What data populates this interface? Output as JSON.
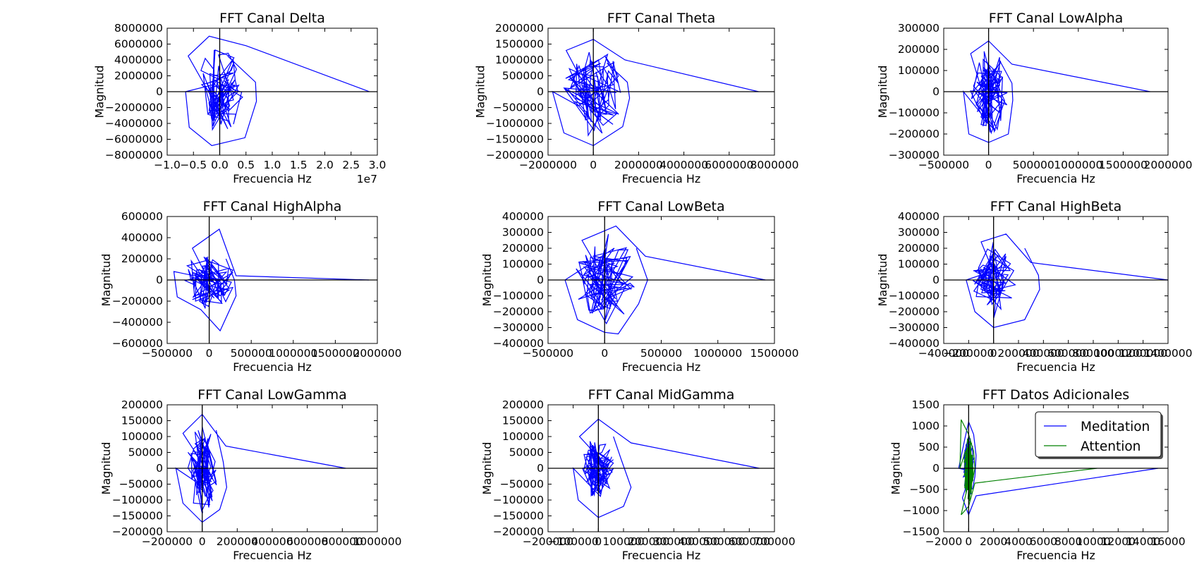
{
  "chart_data": [
    {
      "type": "line",
      "title": "FFT Canal Delta",
      "xlabel": "Frecuencia Hz",
      "ylabel": "Magnitud",
      "xlim": [
        -10000000,
        30000000
      ],
      "ylim": [
        -8000000,
        8000000
      ],
      "xticks": [
        -10000000,
        -5000000,
        0,
        5000000,
        10000000,
        15000000,
        20000000,
        25000000,
        30000000
      ],
      "xtick_labels": [
        "−1.0",
        "−0.5",
        "0.0",
        "0.5",
        "1.0",
        "1.5",
        "2.0",
        "2.5",
        "3.0"
      ],
      "x_offset_label": "1e7",
      "yticks": [
        -8000000,
        -6000000,
        -4000000,
        -2000000,
        0,
        2000000,
        4000000,
        6000000,
        8000000
      ],
      "ytick_labels": [
        "−8000000",
        "−6000000",
        "−4000000",
        "−2000000",
        "0",
        "2000000",
        "4000000",
        "6000000",
        "8000000"
      ],
      "grid": false,
      "series": [
        {
          "color": "#0000ff",
          "spread_x": 4000000,
          "spread_y": 5000000,
          "path": [
            [
              28500000,
              0
            ],
            [
              5000000,
              5800000
            ],
            [
              -2000000,
              7000000
            ],
            [
              -6000000,
              4500000
            ],
            [
              -6500000,
              0
            ],
            [
              -5800000,
              -4500000
            ],
            [
              -1500000,
              -6800000
            ],
            [
              4800000,
              -5800000
            ],
            [
              7000000,
              -1200000
            ],
            [
              6800000,
              1200000
            ],
            [
              1500000,
              4500000
            ]
          ]
        }
      ]
    },
    {
      "type": "line",
      "title": "FFT Canal Theta",
      "xlabel": "Frecuencia Hz",
      "ylabel": "Magnitud",
      "xlim": [
        -2000000,
        8000000
      ],
      "ylim": [
        -2000000,
        2000000
      ],
      "xticks": [
        -2000000,
        0,
        2000000,
        4000000,
        6000000,
        8000000
      ],
      "xtick_labels": [
        "−2000000",
        "0",
        "2000000",
        "4000000",
        "6000000",
        "8000000"
      ],
      "yticks": [
        -2000000,
        -1500000,
        -1000000,
        -500000,
        0,
        500000,
        1000000,
        1500000,
        2000000
      ],
      "ytick_labels": [
        "−2000000",
        "−1500000",
        "−1000000",
        "−500000",
        "0",
        "500000",
        "1000000",
        "1500000",
        "2000000"
      ],
      "grid": false,
      "series": [
        {
          "color": "#0000ff",
          "spread_x": 1200000,
          "spread_y": 1300000,
          "path": [
            [
              7300000,
              0
            ],
            [
              1400000,
              1000000
            ],
            [
              0,
              1650000
            ],
            [
              -1200000,
              1300000
            ],
            [
              -1800000,
              0
            ],
            [
              -1300000,
              -1300000
            ],
            [
              0,
              -1700000
            ],
            [
              1300000,
              -1100000
            ],
            [
              1600000,
              -200000
            ],
            [
              1500000,
              300000
            ],
            [
              600000,
              900000
            ]
          ]
        }
      ]
    },
    {
      "type": "line",
      "title": "FFT Canal LowAlpha",
      "xlabel": "Frecuencia Hz",
      "ylabel": "Magnitud",
      "xlim": [
        -500000,
        2000000
      ],
      "ylim": [
        -300000,
        300000
      ],
      "xticks": [
        -500000,
        0,
        500000,
        1000000,
        1500000,
        2000000
      ],
      "xtick_labels": [
        "−500000",
        "0",
        "500000",
        "1000000",
        "1500000",
        "2000000"
      ],
      "yticks": [
        -300000,
        -200000,
        -100000,
        0,
        100000,
        200000,
        300000
      ],
      "ytick_labels": [
        "−300000",
        "−200000",
        "−100000",
        "0",
        "100000",
        "200000",
        "300000"
      ],
      "grid": false,
      "series": [
        {
          "color": "#0000ff",
          "spread_x": 200000,
          "spread_y": 180000,
          "path": [
            [
              1800000,
              0
            ],
            [
              260000,
              130000
            ],
            [
              0,
              240000
            ],
            [
              -200000,
              180000
            ],
            [
              -280000,
              0
            ],
            [
              -220000,
              -200000
            ],
            [
              0,
              -240000
            ],
            [
              220000,
              -200000
            ],
            [
              270000,
              -40000
            ],
            [
              260000,
              40000
            ],
            [
              120000,
              150000
            ]
          ]
        }
      ]
    },
    {
      "type": "line",
      "title": "FFT Canal HighAlpha",
      "xlabel": "Frecuencia Hz",
      "ylabel": "Magnitud",
      "xlim": [
        -500000,
        2000000
      ],
      "ylim": [
        -600000,
        600000
      ],
      "xticks": [
        -500000,
        0,
        500000,
        1000000,
        1500000,
        2000000
      ],
      "xtick_labels": [
        "−500000",
        "0",
        "500000",
        "1000000",
        "1500000",
        "2000000"
      ],
      "yticks": [
        -600000,
        -400000,
        -200000,
        0,
        200000,
        400000,
        600000
      ],
      "ytick_labels": [
        "−600000",
        "−400000",
        "−200000",
        "0",
        "200000",
        "400000",
        "600000"
      ],
      "grid": false,
      "series": [
        {
          "color": "#0000ff",
          "spread_x": 280000,
          "spread_y": 250000,
          "path": [
            [
              1900000,
              0
            ],
            [
              320000,
              40000
            ],
            [
              120000,
              480000
            ],
            [
              -200000,
              300000
            ],
            [
              -420000,
              80000
            ],
            [
              -380000,
              -160000
            ],
            [
              -100000,
              -280000
            ],
            [
              130000,
              -480000
            ],
            [
              320000,
              -150000
            ],
            [
              300000,
              0
            ],
            [
              200000,
              200000
            ]
          ]
        }
      ]
    },
    {
      "type": "line",
      "title": "FFT Canal LowBeta",
      "xlabel": "Frecuencia Hz",
      "ylabel": "Magnitud",
      "xlim": [
        -500000,
        1500000
      ],
      "ylim": [
        -400000,
        400000
      ],
      "xticks": [
        -500000,
        0,
        500000,
        1000000,
        1500000
      ],
      "xtick_labels": [
        "−500000",
        "0",
        "500000",
        "1000000",
        "1500000"
      ],
      "yticks": [
        -400000,
        -300000,
        -200000,
        -100000,
        0,
        100000,
        200000,
        300000,
        400000
      ],
      "ytick_labels": [
        "−400000",
        "−300000",
        "−200000",
        "−100000",
        "0",
        "100000",
        "200000",
        "300000",
        "400000"
      ],
      "grid": false,
      "series": [
        {
          "color": "#0000ff",
          "spread_x": 250000,
          "spread_y": 270000,
          "path": [
            [
              1420000,
              0
            ],
            [
              360000,
              150000
            ],
            [
              100000,
              340000
            ],
            [
              -200000,
              250000
            ],
            [
              -350000,
              0
            ],
            [
              -240000,
              -250000
            ],
            [
              0,
              -330000
            ],
            [
              120000,
              -340000
            ],
            [
              300000,
              -150000
            ],
            [
              380000,
              0
            ],
            [
              280000,
              200000
            ]
          ]
        }
      ]
    },
    {
      "type": "line",
      "title": "FFT Canal HighBeta",
      "xlabel": "Frecuencia Hz",
      "ylabel": "Magnitud",
      "xlim": [
        -400000,
        1400000
      ],
      "ylim": [
        -400000,
        400000
      ],
      "xticks": [
        -400000,
        -200000,
        0,
        200000,
        400000,
        600000,
        800000,
        1000000,
        1200000,
        1400000
      ],
      "xtick_labels": [
        "−400000",
        "−200000",
        "0",
        "200000",
        "400000",
        "600000",
        "800000",
        "1000000",
        "1200000",
        "1400000"
      ],
      "yticks": [
        -400000,
        -300000,
        -200000,
        -100000,
        0,
        100000,
        200000,
        300000,
        400000
      ],
      "ytick_labels": [
        "−400000",
        "−300000",
        "−200000",
        "−100000",
        "0",
        "100000",
        "200000",
        "300000",
        "400000"
      ],
      "grid": false,
      "series": [
        {
          "color": "#0000ff",
          "spread_x": 160000,
          "spread_y": 230000,
          "path": [
            [
              1400000,
              0
            ],
            [
              300000,
              110000
            ],
            [
              100000,
              290000
            ],
            [
              -100000,
              240000
            ],
            [
              -220000,
              0
            ],
            [
              -150000,
              -200000
            ],
            [
              0,
              -300000
            ],
            [
              250000,
              -250000
            ],
            [
              370000,
              -60000
            ],
            [
              360000,
              30000
            ],
            [
              250000,
              200000
            ]
          ]
        }
      ]
    },
    {
      "type": "line",
      "title": "FFT Canal LowGamma",
      "xlabel": "Frecuencia Hz",
      "ylabel": "Magnitud",
      "xlim": [
        -200000,
        1000000
      ],
      "ylim": [
        -200000,
        200000
      ],
      "xticks": [
        -200000,
        0,
        200000,
        400000,
        600000,
        800000,
        1000000
      ],
      "xtick_labels": [
        "−200000",
        "0",
        "200000",
        "400000",
        "600000",
        "800000",
        "1000000"
      ],
      "yticks": [
        -200000,
        -150000,
        -100000,
        -50000,
        0,
        50000,
        100000,
        150000,
        200000
      ],
      "ytick_labels": [
        "−200000",
        "−150000",
        "−100000",
        "−50000",
        "0",
        "50000",
        "100000",
        "150000",
        "200000"
      ],
      "grid": false,
      "series": [
        {
          "color": "#0000ff",
          "spread_x": 80000,
          "spread_y": 130000,
          "path": [
            [
              820000,
              0
            ],
            [
              135000,
              70000
            ],
            [
              0,
              170000
            ],
            [
              -110000,
              110000
            ],
            [
              -150000,
              0
            ],
            [
              -110000,
              -110000
            ],
            [
              0,
              -170000
            ],
            [
              100000,
              -130000
            ],
            [
              140000,
              -60000
            ],
            [
              120000,
              20000
            ],
            [
              80000,
              120000
            ]
          ]
        }
      ]
    },
    {
      "type": "line",
      "title": "FFT Canal MidGamma",
      "xlabel": "Frecuencia Hz",
      "ylabel": "Magnitud",
      "xlim": [
        -200000,
        700000
      ],
      "ylim": [
        -200000,
        200000
      ],
      "xticks": [
        -200000,
        -100000,
        0,
        100000,
        200000,
        300000,
        400000,
        500000,
        600000,
        700000
      ],
      "xtick_labels": [
        "−200000",
        "−100000",
        "0",
        "100000",
        "200000",
        "300000",
        "400000",
        "500000",
        "600000",
        "700000"
      ],
      "yticks": [
        -200000,
        -150000,
        -100000,
        -50000,
        0,
        50000,
        100000,
        150000,
        200000
      ],
      "ytick_labels": [
        "−200000",
        "−150000",
        "−100000",
        "−50000",
        "0",
        "50000",
        "100000",
        "150000",
        "200000"
      ],
      "grid": false,
      "series": [
        {
          "color": "#0000ff",
          "spread_x": 60000,
          "spread_y": 90000,
          "path": [
            [
              640000,
              0
            ],
            [
              130000,
              80000
            ],
            [
              0,
              155000
            ],
            [
              -75000,
              100000
            ],
            [
              -100000,
              0
            ],
            [
              -80000,
              -100000
            ],
            [
              0,
              -155000
            ],
            [
              100000,
              -120000
            ],
            [
              130000,
              -60000
            ],
            [
              90000,
              30000
            ],
            [
              60000,
              100000
            ]
          ]
        }
      ]
    },
    {
      "type": "line",
      "title": "FFT Datos Adicionales",
      "xlabel": "Frecuencia Hz",
      "ylabel": "Magnitud",
      "xlim": [
        -2000,
        16000
      ],
      "ylim": [
        -1500,
        1500
      ],
      "xticks": [
        -2000,
        0,
        2000,
        4000,
        6000,
        8000,
        10000,
        12000,
        14000,
        16000
      ],
      "xtick_labels": [
        "−2000",
        "0",
        "2000",
        "4000",
        "6000",
        "8000",
        "10000",
        "12000",
        "14000",
        "16000"
      ],
      "yticks": [
        -1500,
        -1000,
        -500,
        0,
        500,
        1000,
        1500
      ],
      "ytick_labels": [
        "−1500",
        "−1000",
        "−500",
        "0",
        "500",
        "1000",
        "1500"
      ],
      "grid": false,
      "legend": "top-right",
      "series": [
        {
          "name": "Meditation",
          "color": "#0000ff",
          "spread_x": 450,
          "spread_y": 700,
          "path": [
            [
              15200,
              0
            ],
            [
              600,
              -650
            ],
            [
              0,
              -1100
            ],
            [
              -500,
              -700
            ],
            [
              -800,
              0
            ],
            [
              -300,
              700
            ],
            [
              0,
              1100
            ],
            [
              400,
              800
            ],
            [
              600,
              300
            ],
            [
              500,
              -200
            ],
            [
              300,
              -500
            ]
          ]
        },
        {
          "name": "Attention",
          "color": "#008000",
          "spread_x": 350,
          "spread_y": 750,
          "path": [
            [
              10300,
              0
            ],
            [
              500,
              -350
            ],
            [
              0,
              -900
            ],
            [
              -600,
              -1100
            ],
            [
              -700,
              0
            ],
            [
              -600,
              1150
            ],
            [
              0,
              800
            ],
            [
              400,
              400
            ],
            [
              500,
              0
            ],
            [
              300,
              -300
            ],
            [
              100,
              -500
            ]
          ]
        }
      ]
    }
  ]
}
